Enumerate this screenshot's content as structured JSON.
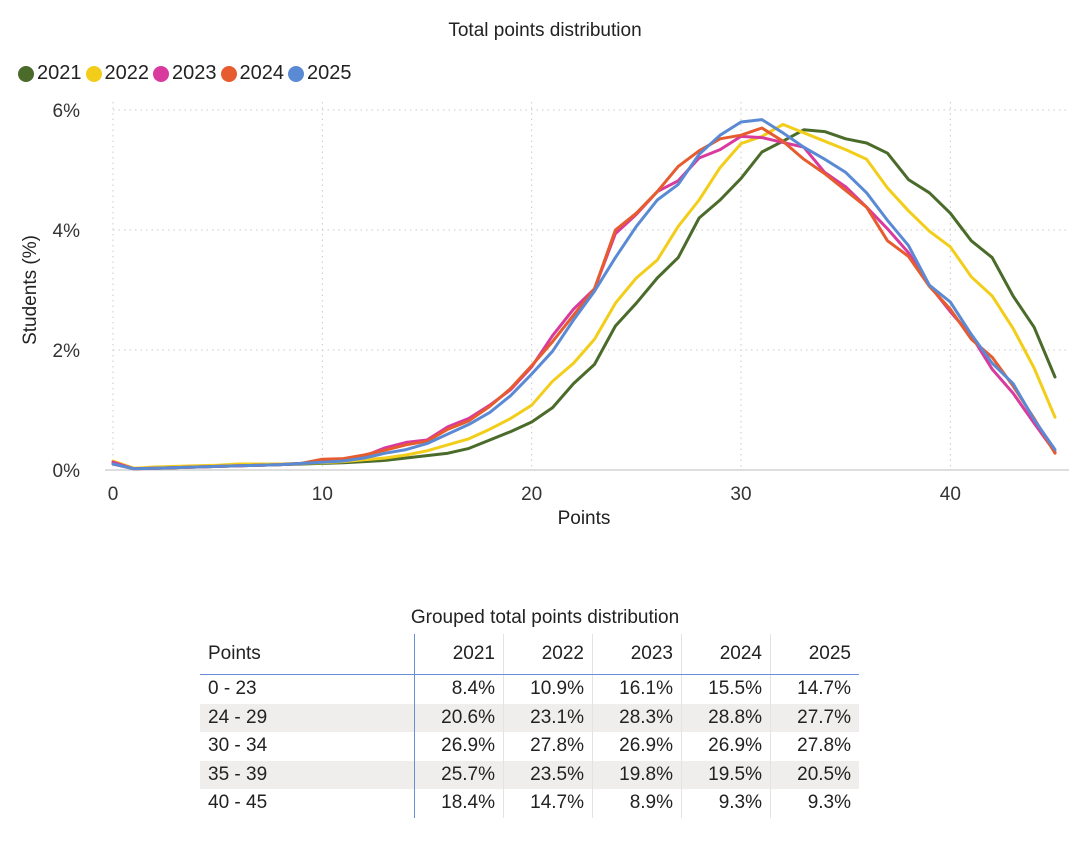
{
  "chart_data": [
    {
      "type": "line",
      "title": "Total points distribution",
      "xlabel": "Points",
      "ylabel": "Students (%)",
      "xlim": [
        0,
        45
      ],
      "ylim": [
        0,
        6
      ],
      "x_ticks": [
        "0",
        "10",
        "20",
        "30",
        "40"
      ],
      "y_ticks": [
        "0%",
        "2%",
        "4%",
        "6%"
      ],
      "grid": true,
      "legend_position": "top-left",
      "x": [
        0,
        1,
        2,
        3,
        4,
        5,
        6,
        7,
        8,
        9,
        10,
        11,
        12,
        13,
        14,
        15,
        16,
        17,
        18,
        19,
        20,
        21,
        22,
        23,
        24,
        25,
        26,
        27,
        28,
        29,
        30,
        31,
        32,
        33,
        34,
        35,
        36,
        37,
        38,
        39,
        40,
        41,
        42,
        43,
        44,
        45
      ],
      "series": [
        {
          "name": "2021",
          "color": "#4a6b2a",
          "values": [
            0.12,
            0.02,
            0.03,
            0.04,
            0.05,
            0.06,
            0.07,
            0.08,
            0.09,
            0.1,
            0.11,
            0.12,
            0.14,
            0.16,
            0.2,
            0.24,
            0.28,
            0.36,
            0.5,
            0.64,
            0.8,
            1.04,
            1.44,
            1.76,
            2.4,
            2.78,
            3.2,
            3.54,
            4.2,
            4.5,
            4.86,
            5.3,
            5.48,
            5.67,
            5.64,
            5.52,
            5.45,
            5.28,
            4.84,
            4.62,
            4.28,
            3.82,
            3.54,
            2.9,
            2.38,
            1.55
          ]
        },
        {
          "name": "2022",
          "color": "#f2ce1b",
          "values": [
            0.15,
            0.03,
            0.05,
            0.06,
            0.07,
            0.08,
            0.1,
            0.1,
            0.1,
            0.11,
            0.12,
            0.14,
            0.17,
            0.2,
            0.25,
            0.32,
            0.42,
            0.52,
            0.68,
            0.86,
            1.08,
            1.48,
            1.78,
            2.18,
            2.78,
            3.2,
            3.5,
            4.06,
            4.5,
            5.04,
            5.44,
            5.56,
            5.76,
            5.62,
            5.48,
            5.34,
            5.18,
            4.7,
            4.32,
            3.98,
            3.72,
            3.22,
            2.9,
            2.36,
            1.7,
            0.88
          ]
        },
        {
          "name": "2023",
          "color": "#d93a9e",
          "values": [
            0.13,
            0.02,
            0.03,
            0.04,
            0.05,
            0.06,
            0.07,
            0.08,
            0.09,
            0.11,
            0.14,
            0.17,
            0.23,
            0.37,
            0.46,
            0.5,
            0.72,
            0.86,
            1.08,
            1.34,
            1.72,
            2.24,
            2.68,
            3.02,
            3.94,
            4.26,
            4.64,
            4.82,
            5.2,
            5.34,
            5.56,
            5.54,
            5.46,
            5.38,
            4.96,
            4.72,
            4.38,
            4.02,
            3.62,
            3.08,
            2.64,
            2.24,
            1.68,
            1.28,
            0.78,
            0.3
          ]
        },
        {
          "name": "2024",
          "color": "#e65c2e",
          "values": [
            0.1,
            0.02,
            0.03,
            0.04,
            0.05,
            0.06,
            0.07,
            0.08,
            0.09,
            0.11,
            0.18,
            0.19,
            0.25,
            0.33,
            0.42,
            0.48,
            0.68,
            0.82,
            1.06,
            1.36,
            1.74,
            2.14,
            2.58,
            3.02,
            4.0,
            4.28,
            4.64,
            5.06,
            5.32,
            5.52,
            5.58,
            5.7,
            5.48,
            5.18,
            4.94,
            4.66,
            4.38,
            3.82,
            3.56,
            3.06,
            2.68,
            2.18,
            1.88,
            1.4,
            0.86,
            0.28
          ]
        },
        {
          "name": "2025",
          "color": "#5b8ad4",
          "values": [
            0.1,
            0.02,
            0.03,
            0.04,
            0.05,
            0.06,
            0.07,
            0.08,
            0.09,
            0.11,
            0.13,
            0.15,
            0.2,
            0.28,
            0.34,
            0.44,
            0.6,
            0.76,
            0.96,
            1.24,
            1.6,
            1.98,
            2.5,
            2.98,
            3.54,
            4.06,
            4.5,
            4.76,
            5.26,
            5.58,
            5.8,
            5.84,
            5.62,
            5.38,
            5.18,
            4.96,
            4.62,
            4.16,
            3.74,
            3.08,
            2.8,
            2.26,
            1.78,
            1.44,
            0.84,
            0.34
          ]
        }
      ]
    },
    {
      "type": "table",
      "title": "Grouped total points distribution",
      "columns": [
        "Points",
        "2021",
        "2022",
        "2023",
        "2024",
        "2025"
      ],
      "rows": [
        [
          "0 - 23",
          "8.4%",
          "10.9%",
          "16.1%",
          "15.5%",
          "14.7%"
        ],
        [
          "24 - 29",
          "20.6%",
          "23.1%",
          "28.3%",
          "28.8%",
          "27.7%"
        ],
        [
          "30 - 34",
          "26.9%",
          "27.8%",
          "26.9%",
          "26.9%",
          "27.8%"
        ],
        [
          "35 - 39",
          "25.7%",
          "23.5%",
          "19.8%",
          "19.5%",
          "20.5%"
        ],
        [
          "40 - 45",
          "18.4%",
          "14.7%",
          "8.9%",
          "9.3%",
          "9.3%"
        ]
      ]
    }
  ]
}
